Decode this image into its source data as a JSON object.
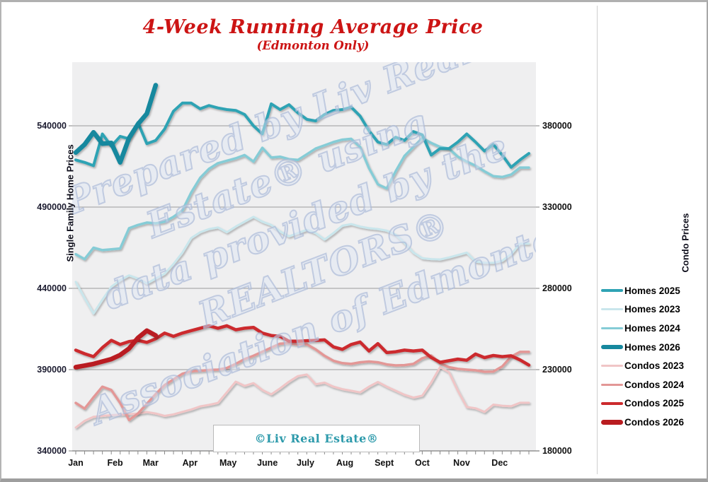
{
  "window": {
    "background": "#ffffff",
    "frame_border_color": "#b0b0b0"
  },
  "title": {
    "color": "#cc1414"
  },
  "watermark": {
    "lines": [
      "Prepared by Liv Real",
      "Estate® using",
      "data provided by the",
      "REALTORS®",
      "Association of Edmonton."
    ],
    "outline_color": "#abbad8"
  },
  "footer_box": {
    "text": "©Liv Real Estate®",
    "color": "#2d9aab"
  },
  "chart_data": {
    "type": "line",
    "title": "4-Week Running Average Price",
    "subtitle": "(Edmonton Only)",
    "x_axis": {
      "unit": "week-of-year",
      "weeks": 52,
      "month_labels": [
        "Jan",
        "Feb",
        "Mar",
        "Apr",
        "May",
        "June",
        "July",
        "Aug",
        "Sept",
        "Oct",
        "Nov",
        "Dec"
      ]
    },
    "y_axis_left": {
      "label": "Single Family Home Prices",
      "ticks": [
        540000,
        490000,
        440000,
        390000,
        340000
      ],
      "range": [
        340000,
        579000
      ],
      "applies_to": "Homes series"
    },
    "y_axis_right": {
      "label": "Condo Prices",
      "ticks": [
        380000,
        330000,
        280000,
        230000,
        180000
      ],
      "range": [
        180000,
        419000
      ],
      "applies_to": "Condos series"
    },
    "grid": "horizontal gridlines at left-axis ticks",
    "legend_position": "right",
    "plot_background": "#efeff0",
    "draw_order": [
      "Homes 2023",
      "Homes 2024",
      "Homes 2025",
      "Homes 2026",
      "Condos 2023",
      "Condos 2024",
      "Condos 2025",
      "Condos 2026"
    ],
    "series": [
      {
        "name": "Homes 2025",
        "axis": "left",
        "color": "#2fa3b4",
        "line_width": 4,
        "start_week": 1,
        "values": [
          519000,
          517500,
          515500,
          535000,
          527500,
          533500,
          532000,
          542000,
          529000,
          531000,
          538000,
          549000,
          554000,
          554000,
          550500,
          552500,
          551000,
          550000,
          549500,
          547000,
          540000,
          535000,
          553500,
          550000,
          553000,
          548000,
          544000,
          543000,
          547000,
          549500,
          550000,
          551500,
          546000,
          537000,
          530000,
          528500,
          533000,
          531000,
          536500,
          534500,
          522000,
          526000,
          526000,
          530000,
          535000,
          530000,
          524500,
          528500,
          522000,
          514500,
          519000,
          523000
        ]
      },
      {
        "name": "Homes 2023",
        "axis": "left",
        "color": "#c9e6ec",
        "line_width": 3,
        "start_week": 1,
        "values": [
          444000,
          434000,
          424500,
          433000,
          441000,
          445000,
          448000,
          446000,
          443000,
          446000,
          449000,
          455000,
          462000,
          471000,
          474500,
          476500,
          477500,
          474500,
          478000,
          481000,
          484000,
          481000,
          479000,
          475000,
          472000,
          474000,
          476000,
          474000,
          470000,
          474000,
          478500,
          479500,
          478000,
          477000,
          476500,
          475500,
          473000,
          468000,
          462000,
          458500,
          458000,
          457800,
          459000,
          460500,
          462000,
          456500,
          455800,
          455700,
          457000,
          461000,
          467500,
          467500
        ]
      },
      {
        "name": "Homes 2024",
        "axis": "left",
        "color": "#85ccd6",
        "line_width": 3.5,
        "start_week": 1,
        "values": [
          461000,
          458000,
          465000,
          463500,
          464000,
          464500,
          477000,
          479000,
          480500,
          480000,
          481000,
          484000,
          488000,
          499000,
          508000,
          513500,
          517000,
          518500,
          520000,
          522000,
          518000,
          526500,
          520500,
          521000,
          519500,
          519000,
          522500,
          526000,
          528000,
          530000,
          531500,
          532000,
          527000,
          514000,
          504000,
          501500,
          512000,
          521500,
          527000,
          532500,
          529500,
          527000,
          526000,
          521000,
          518000,
          515500,
          512000,
          509000,
          508500,
          510000,
          514300,
          514300
        ]
      },
      {
        "name": "Homes 2026",
        "axis": "left",
        "color": "#16889e",
        "line_width": 6.5,
        "start_week": 1,
        "values": [
          523500,
          528500,
          536000,
          529000,
          529500,
          517500,
          532500,
          541000,
          547500,
          565000
        ]
      },
      {
        "name": "Condos 2023",
        "axis": "right",
        "color": "#f0c5c6",
        "line_width": 3,
        "start_week": 1,
        "values": [
          194400,
          198500,
          201000,
          201500,
          202000,
          202300,
          202600,
          203000,
          203900,
          203000,
          201500,
          202500,
          204000,
          205500,
          207400,
          208300,
          209500,
          216000,
          222600,
          220000,
          221700,
          217500,
          214800,
          218500,
          222600,
          226000,
          227000,
          221000,
          222000,
          219500,
          218000,
          217000,
          216000,
          219500,
          222400,
          219500,
          217000,
          214500,
          212800,
          214000,
          222000,
          231500,
          228500,
          217000,
          207000,
          206200,
          204000,
          208500,
          207800,
          207500,
          209600,
          209600
        ]
      },
      {
        "name": "Condos 2024",
        "axis": "right",
        "color": "#e39796",
        "line_width": 3.5,
        "start_week": 1,
        "values": [
          209500,
          206000,
          213000,
          219500,
          217500,
          209500,
          199000,
          203000,
          209000,
          215000,
          220500,
          224000,
          227500,
          229000,
          229300,
          229800,
          230000,
          231000,
          233500,
          236500,
          238500,
          241000,
          243500,
          246000,
          246300,
          245500,
          245600,
          242500,
          238500,
          235500,
          234000,
          233500,
          234500,
          235000,
          234500,
          233200,
          232600,
          232800,
          233500,
          237000,
          238700,
          233900,
          231500,
          230500,
          230000,
          229600,
          228700,
          228800,
          232000,
          238000,
          240900,
          240900
        ]
      },
      {
        "name": "Condos 2025",
        "axis": "right",
        "color": "#cc2a2d",
        "line_width": 4.5,
        "start_week": 1,
        "values": [
          242000,
          239800,
          238000,
          243500,
          248000,
          245500,
          247300,
          248000,
          246800,
          249000,
          252500,
          250500,
          252500,
          254000,
          255500,
          257000,
          255500,
          257000,
          254500,
          255500,
          256000,
          252500,
          251000,
          250500,
          247500,
          247500,
          247800,
          248000,
          248300,
          244000,
          242500,
          245500,
          247000,
          241500,
          246000,
          240500,
          241000,
          242000,
          241500,
          242000,
          237500,
          234500,
          235500,
          236500,
          235800,
          239600,
          237400,
          238700,
          238000,
          238500,
          236000,
          232800
        ]
      },
      {
        "name": "Condos 2026",
        "axis": "right",
        "color": "#b91c20",
        "line_width": 6.5,
        "start_week": 1,
        "values": [
          231500,
          232500,
          233500,
          235000,
          236500,
          239000,
          243000,
          249500,
          254000,
          251000
        ]
      }
    ]
  }
}
